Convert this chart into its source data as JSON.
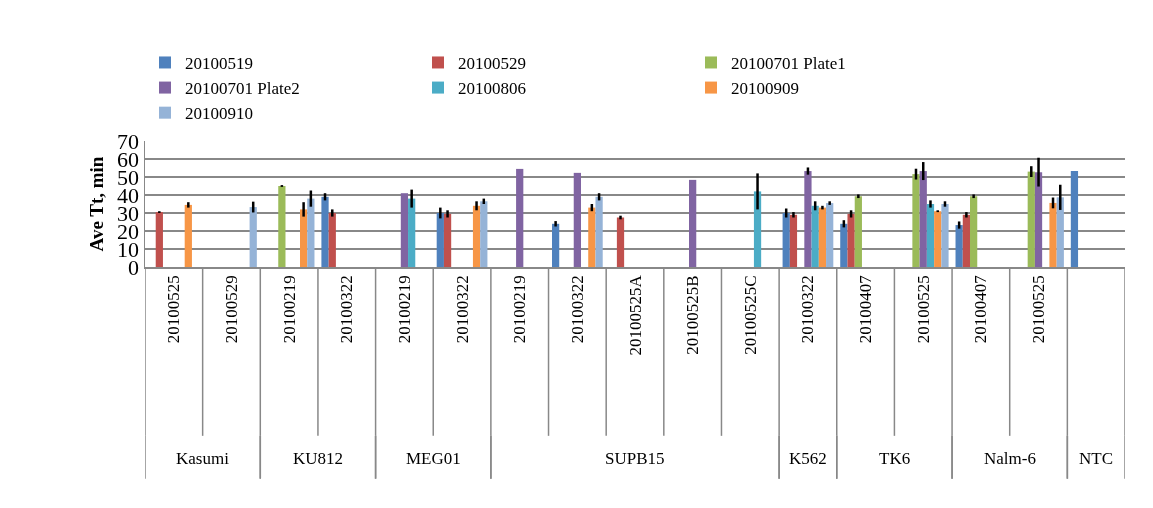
{
  "chart_data": {
    "type": "bar",
    "ylabel": "Ave Tt, min",
    "categories": [
      "20100525",
      "20100529",
      "20100219",
      "20100322",
      "20100219",
      "20100322",
      "20100219",
      "20100322",
      "20100525A",
      "20100525B",
      "20100525C",
      "20100322",
      "20100407",
      "20100525",
      "20100407",
      "20100525",
      null
    ],
    "annotations": [
      "Kasumi",
      "KU812",
      "MEG01",
      "SUPB15",
      "K562",
      "TK6",
      "Nalm-6",
      "NTC"
    ],
    "series": [
      {
        "name": "20100519",
        "color": "#4f81bd",
        "values": [
          null,
          null,
          null,
          39,
          null,
          30,
          null,
          24,
          null,
          null,
          null,
          30,
          24,
          null,
          23.3,
          null,
          53.4
        ],
        "errors": [
          null,
          null,
          null,
          2,
          null,
          3,
          null,
          1.5,
          null,
          null,
          null,
          2.5,
          2,
          null,
          2,
          null,
          null
        ]
      },
      {
        "name": "20100529",
        "color": "#c0504d",
        "values": [
          30.5,
          null,
          null,
          30,
          null,
          29.5,
          null,
          null,
          27.5,
          null,
          null,
          29,
          29.5,
          null,
          29,
          null,
          null
        ],
        "errors": [
          0.5,
          null,
          null,
          2,
          null,
          2,
          null,
          null,
          1,
          null,
          null,
          1.5,
          2,
          null,
          1.5,
          null,
          null
        ]
      },
      {
        "name": "20100701 Plate1",
        "color": "#9bbb59",
        "values": [
          null,
          null,
          45,
          null,
          null,
          null,
          null,
          null,
          null,
          null,
          null,
          null,
          39.3,
          51.6,
          39.3,
          53,
          null
        ],
        "errors": [
          null,
          null,
          0.5,
          null,
          null,
          null,
          null,
          null,
          null,
          null,
          null,
          null,
          1,
          3,
          1,
          3,
          null
        ]
      },
      {
        "name": "20100701 Plate2",
        "color": "#8064a2",
        "values": [
          null,
          null,
          null,
          null,
          41,
          null,
          54.5,
          52.3,
          null,
          48.4,
          null,
          53.3,
          null,
          53.3,
          null,
          52.7,
          null
        ],
        "errors": [
          null,
          null,
          null,
          null,
          null,
          null,
          null,
          null,
          null,
          null,
          null,
          2,
          null,
          5,
          null,
          8,
          null
        ]
      },
      {
        "name": "20100806",
        "color": "#4bacc6",
        "values": [
          null,
          null,
          null,
          null,
          38,
          null,
          null,
          null,
          null,
          null,
          42,
          34,
          null,
          35,
          null,
          null,
          null
        ],
        "errors": [
          null,
          null,
          null,
          null,
          5,
          null,
          null,
          null,
          null,
          null,
          10,
          2.5,
          null,
          2,
          null,
          null,
          null
        ]
      },
      {
        "name": "20100909",
        "color": "#f79646",
        "values": [
          34.5,
          null,
          32,
          null,
          null,
          34,
          null,
          33,
          null,
          null,
          null,
          33,
          null,
          31,
          null,
          35.6,
          null
        ],
        "errors": [
          1.5,
          null,
          4,
          null,
          null,
          2.5,
          null,
          2,
          null,
          null,
          null,
          1,
          null,
          0.5,
          null,
          3,
          null
        ]
      },
      {
        "name": "20100910",
        "color": "#95b3d7",
        "values": [
          null,
          33.3,
          38,
          null,
          null,
          36.5,
          null,
          39,
          null,
          null,
          null,
          35.5,
          null,
          35,
          null,
          38.7,
          null
        ],
        "errors": [
          null,
          3,
          4.5,
          null,
          null,
          1.5,
          null,
          2,
          null,
          null,
          null,
          1,
          null,
          1.5,
          null,
          7,
          null
        ]
      }
    ],
    "ylim": [
      0,
      70
    ],
    "yticks": [
      0,
      10,
      20,
      30,
      40,
      50,
      60,
      70
    ],
    "grid": "y",
    "legend": "top"
  }
}
